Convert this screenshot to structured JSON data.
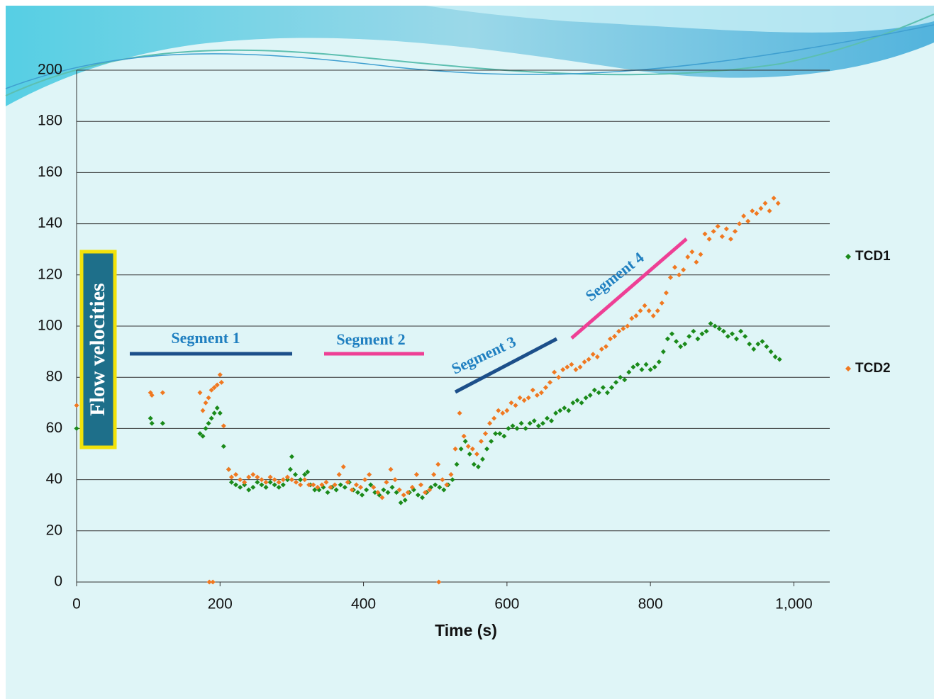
{
  "chart_data": {
    "type": "scatter",
    "x_label": "Time (s)",
    "y_label": "Flow velocities",
    "annotations": [
      "Segment 1",
      "Segment 2",
      "Segment 3",
      "Segment 4"
    ],
    "xlim": [
      0,
      1050
    ],
    "ylim": [
      0,
      200
    ],
    "xticks": [
      0,
      200,
      400,
      600,
      800,
      {
        "value": 1000,
        "label": "1,000"
      }
    ],
    "yticks": [
      0,
      20,
      40,
      60,
      80,
      100,
      120,
      140,
      160,
      180,
      200
    ],
    "grid": true,
    "legend": "right",
    "series": [
      {
        "name": "TCD1",
        "color": "#1a8a1a",
        "x": [
          0,
          103,
          105,
          120,
          172,
          176,
          180,
          184,
          188,
          192,
          196,
          200,
          205,
          212,
          216,
          222,
          228,
          234,
          240,
          246,
          252,
          258,
          264,
          270,
          276,
          282,
          288,
          294,
          298,
          300,
          305,
          312,
          318,
          322,
          326,
          332,
          338,
          344,
          350,
          356,
          362,
          368,
          374,
          380,
          386,
          392,
          398,
          404,
          410,
          416,
          422,
          428,
          434,
          440,
          446,
          452,
          458,
          464,
          470,
          476,
          482,
          488,
          494,
          500,
          506,
          512,
          518,
          524,
          530,
          536,
          542,
          548,
          554,
          560,
          566,
          572,
          578,
          584,
          590,
          596,
          602,
          608,
          614,
          620,
          626,
          632,
          638,
          644,
          650,
          656,
          662,
          668,
          674,
          680,
          686,
          692,
          698,
          704,
          710,
          716,
          722,
          728,
          734,
          740,
          746,
          752,
          758,
          764,
          770,
          776,
          782,
          788,
          794,
          800,
          806,
          812,
          818,
          824,
          830,
          836,
          842,
          848,
          854,
          860,
          866,
          872,
          878,
          884,
          890,
          896,
          902,
          908,
          914,
          920,
          926,
          932,
          938,
          944,
          950,
          956,
          962,
          968,
          974,
          980
        ],
        "values": [
          60,
          64,
          62,
          62,
          58,
          57,
          60,
          62,
          64,
          66,
          68,
          66,
          53,
          44,
          39,
          38,
          37,
          38,
          36,
          37,
          39,
          38,
          37,
          39,
          38,
          37,
          38,
          40,
          44,
          49,
          42,
          40,
          42,
          43,
          38,
          36,
          36,
          37,
          35,
          37,
          36,
          38,
          37,
          39,
          36,
          35,
          34,
          36,
          38,
          35,
          34,
          36,
          35,
          37,
          35,
          31,
          32,
          35,
          36,
          34,
          33,
          35,
          37,
          38,
          37,
          36,
          38,
          40,
          46,
          52,
          55,
          50,
          46,
          45,
          48,
          52,
          55,
          58,
          58,
          57,
          60,
          61,
          60,
          62,
          60,
          62,
          63,
          61,
          62,
          64,
          63,
          66,
          67,
          68,
          67,
          70,
          71,
          70,
          72,
          73,
          75,
          74,
          76,
          74,
          76,
          78,
          80,
          79,
          82,
          84,
          85,
          83,
          85,
          83,
          84,
          86,
          90,
          95,
          97,
          94,
          92,
          93,
          96,
          98,
          95,
          97,
          98,
          101,
          100,
          99,
          98,
          96,
          97,
          95,
          98,
          96,
          93,
          91,
          93,
          94,
          92,
          90,
          88,
          87
        ]
      },
      {
        "name": "TCD2",
        "color": "#f07820",
        "x": [
          0,
          103,
          105,
          120,
          172,
          176,
          180,
          184,
          188,
          192,
          196,
          200,
          202,
          205,
          212,
          216,
          222,
          228,
          234,
          240,
          246,
          252,
          258,
          264,
          270,
          276,
          282,
          288,
          294,
          300,
          306,
          312,
          318,
          324,
          330,
          336,
          342,
          348,
          354,
          360,
          366,
          372,
          378,
          384,
          390,
          396,
          402,
          408,
          414,
          420,
          426,
          432,
          438,
          444,
          450,
          456,
          462,
          468,
          474,
          480,
          486,
          492,
          498,
          504,
          510,
          516,
          522,
          528,
          534,
          540,
          546,
          552,
          558,
          564,
          570,
          576,
          582,
          588,
          594,
          600,
          606,
          612,
          618,
          624,
          630,
          636,
          642,
          648,
          654,
          660,
          666,
          672,
          678,
          684,
          690,
          696,
          702,
          708,
          714,
          720,
          726,
          732,
          738,
          744,
          750,
          756,
          762,
          768,
          774,
          780,
          786,
          792,
          798,
          804,
          810,
          816,
          822,
          828,
          834,
          840,
          846,
          852,
          858,
          864,
          870,
          876,
          882,
          888,
          894,
          900,
          906,
          912,
          918,
          924,
          930,
          936,
          942,
          948,
          954,
          960,
          966,
          972,
          978,
          185,
          190,
          505
        ],
        "values": [
          69,
          74,
          73,
          74,
          74,
          67,
          70,
          72,
          75,
          76,
          77,
          81,
          78,
          61,
          44,
          41,
          42,
          40,
          39,
          41,
          42,
          41,
          40,
          39,
          41,
          40,
          39,
          40,
          41,
          40,
          39,
          38,
          40,
          38,
          38,
          37,
          38,
          39,
          37,
          38,
          42,
          45,
          39,
          36,
          38,
          37,
          40,
          42,
          37,
          35,
          33,
          39,
          44,
          40,
          36,
          34,
          35,
          37,
          42,
          38,
          35,
          36,
          42,
          46,
          40,
          38,
          42,
          52,
          66,
          57,
          53,
          52,
          50,
          55,
          58,
          62,
          64,
          67,
          66,
          67,
          70,
          69,
          72,
          71,
          72,
          75,
          73,
          74,
          76,
          78,
          82,
          80,
          83,
          84,
          85,
          83,
          84,
          86,
          87,
          89,
          88,
          91,
          92,
          95,
          96,
          98,
          99,
          100,
          103,
          104,
          106,
          108,
          106,
          104,
          106,
          109,
          113,
          119,
          123,
          120,
          122,
          127,
          129,
          125,
          128,
          136,
          134,
          137,
          139,
          135,
          138,
          134,
          137,
          140,
          143,
          141,
          145,
          144,
          146,
          148,
          145,
          150,
          148,
          0,
          0,
          0
        ]
      }
    ]
  }
}
